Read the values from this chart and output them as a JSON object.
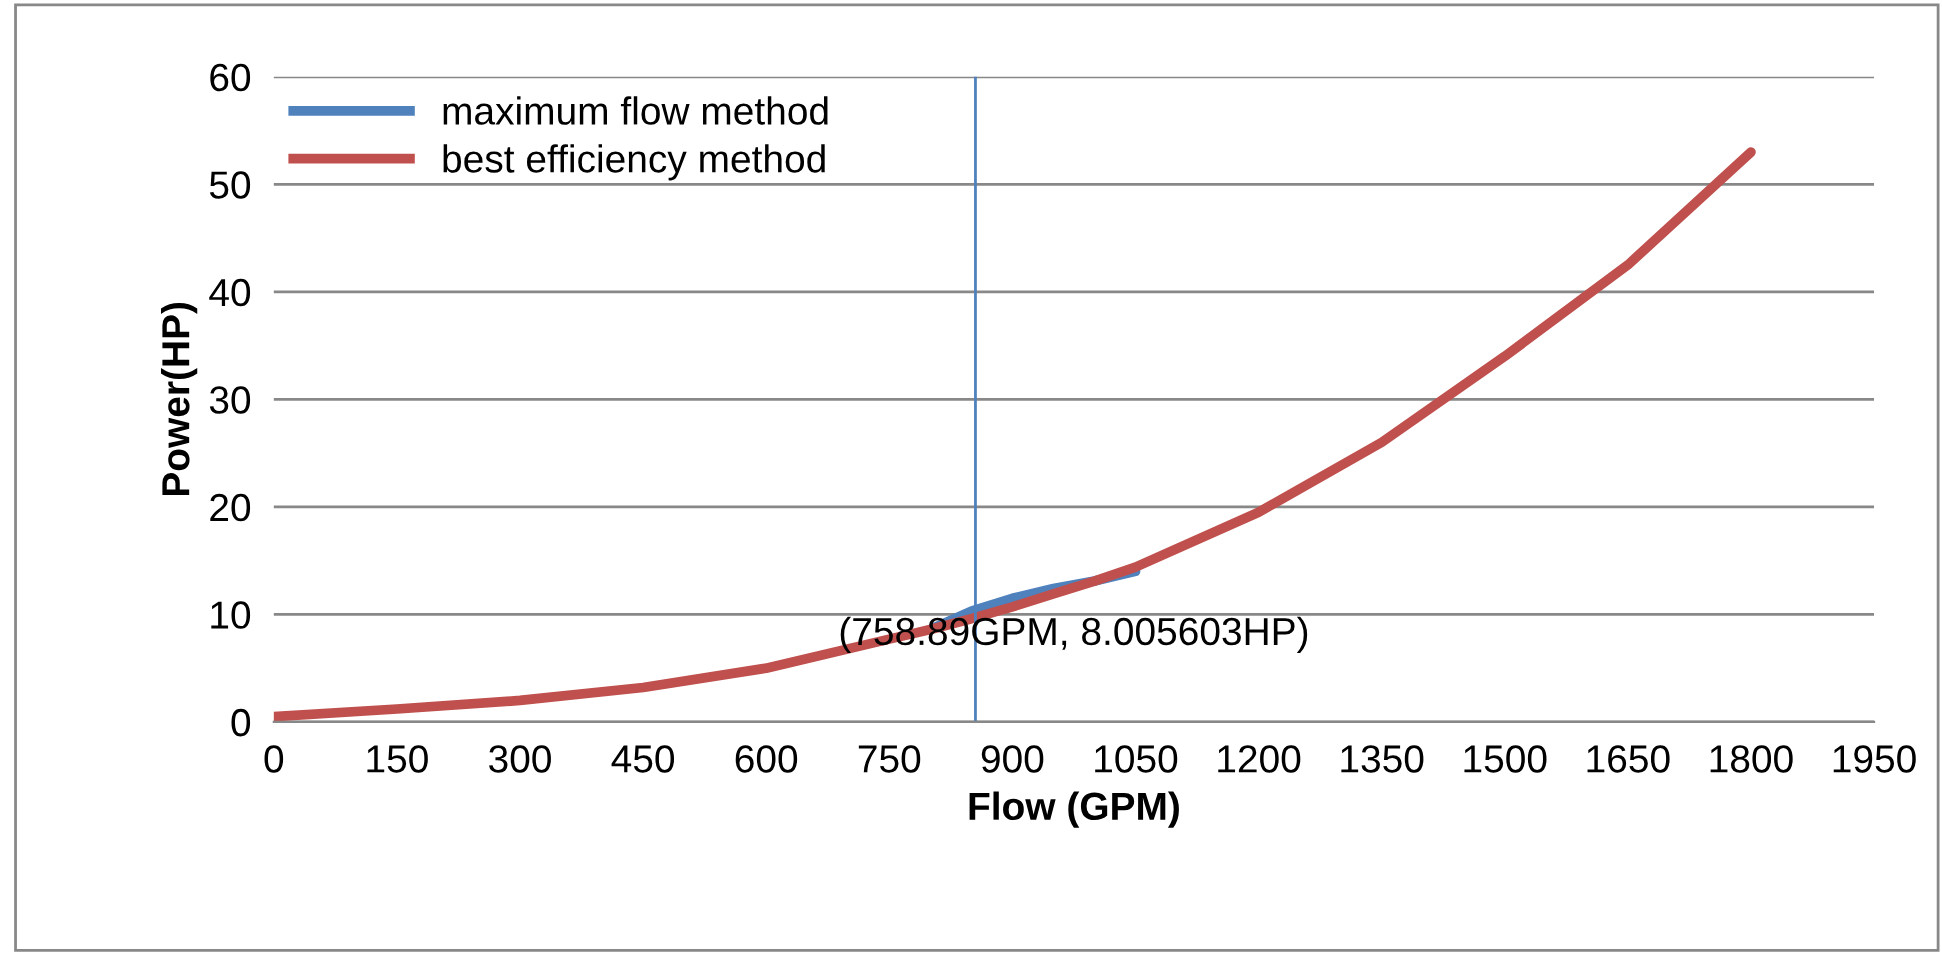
{
  "chart_data": {
    "type": "line",
    "xlabel": "Flow (GPM)",
    "ylabel": "Power(HP)",
    "x": [
      0,
      150,
      300,
      450,
      600,
      750,
      800,
      850,
      900,
      950,
      1000,
      1050,
      1200,
      1350,
      1500,
      1650,
      1800
    ],
    "series": [
      {
        "name": "maximum flow method",
        "color": "#4f81bd",
        "values": [
          null,
          null,
          null,
          null,
          null,
          null,
          8.6,
          10.3,
          11.5,
          12.4,
          13.1,
          14.0,
          null,
          null,
          null,
          null,
          null
        ]
      },
      {
        "name": "best efficiency method",
        "color": "#c0504d",
        "values": [
          0.5,
          1.2,
          2.0,
          3.2,
          5.0,
          7.7,
          8.6,
          9.6,
          10.7,
          11.9,
          13.1,
          14.4,
          19.5,
          26,
          34,
          42.5,
          53
        ]
      }
    ],
    "xlim": [
      0,
      1950
    ],
    "xticks": [
      0,
      150,
      300,
      450,
      600,
      750,
      900,
      1050,
      1200,
      1350,
      1500,
      1650,
      1800,
      1950
    ],
    "ylim": [
      0,
      60
    ],
    "yticks": [
      0,
      10,
      20,
      30,
      40,
      50,
      60
    ],
    "grid": "y",
    "legend": "top left",
    "ref_lines": [
      {
        "axis": "x",
        "value": 855,
        "color": "#4f81bd"
      }
    ],
    "annotations": [
      "(758.89GPM, 8.005603HP)"
    ]
  }
}
